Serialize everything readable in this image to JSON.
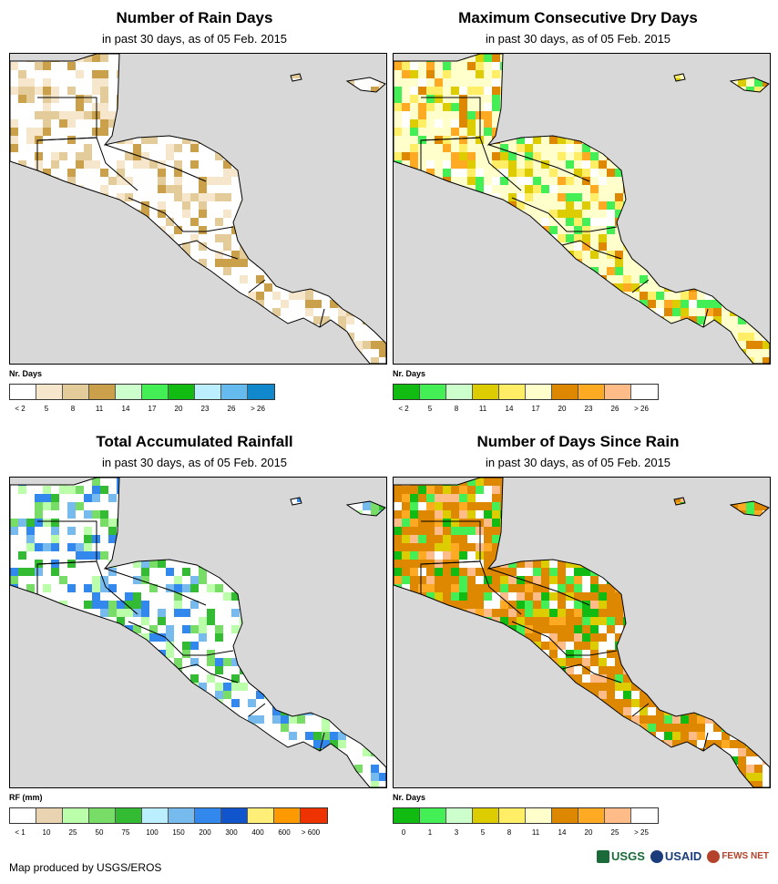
{
  "panels": [
    {
      "title": "Number of Rain Days",
      "subtitle": "in past 30 days, as of 05 Feb. 2015",
      "legend_title": "Nr. Days",
      "legend_colors": [
        "#ffffff",
        "#f5e6cc",
        "#e3cb9a",
        "#caa04a",
        "#ccffcc",
        "#44ee55",
        "#11bb11",
        "#bbeeff",
        "#66bbee",
        "#1188cc"
      ],
      "legend_ticks": [
        "< 2",
        "5",
        "8",
        "11",
        "14",
        "17",
        "20",
        "23",
        "26",
        "> 26"
      ],
      "land_color": "#ffffff",
      "fill_palette": [
        "#f5e6cc",
        "#e3cb9a",
        "#caa04a",
        "#ffffff"
      ]
    },
    {
      "title": "Maximum Consecutive Dry Days",
      "subtitle": "in past 30 days, as of 05 Feb. 2015",
      "legend_title": "Nr. Days",
      "legend_colors": [
        "#11bb11",
        "#44ee55",
        "#ccffcc",
        "#ddcc00",
        "#ffee66",
        "#ffffcc",
        "#dd8800",
        "#ffaa22",
        "#ffbb88",
        "#ffffff"
      ],
      "legend_ticks": [
        "< 2",
        "5",
        "8",
        "11",
        "14",
        "17",
        "20",
        "23",
        "26",
        "> 26"
      ],
      "land_color": "#ffffcc",
      "fill_palette": [
        "#ffee66",
        "#ddcc00",
        "#dd8800",
        "#ffaa22",
        "#ffffff",
        "#44ee55"
      ]
    },
    {
      "title": "Total Accumulated Rainfall",
      "subtitle": "in past 30 days, as of 05 Feb. 2015",
      "legend_title": "RF (mm)",
      "legend_colors": [
        "#ffffff",
        "#ead3b0",
        "#bbffaa",
        "#77dd66",
        "#33bb33",
        "#bbeeff",
        "#77bbee",
        "#3388ee",
        "#1155cc",
        "#ffee77",
        "#ff9900",
        "#ee3300"
      ],
      "legend_ticks": [
        "< 1",
        "10",
        "25",
        "50",
        "75",
        "100",
        "150",
        "200",
        "300",
        "400",
        "600",
        "> 600"
      ],
      "land_color": "#ffffff",
      "fill_palette": [
        "#bbffaa",
        "#77dd66",
        "#33bb33",
        "#77bbee",
        "#3388ee",
        "#ffffff"
      ]
    },
    {
      "title": "Number of Days Since Rain",
      "subtitle": "in past 30 days, as of 05 Feb. 2015",
      "legend_title": "Nr. Days",
      "legend_colors": [
        "#11bb11",
        "#44ee55",
        "#ccffcc",
        "#ddcc00",
        "#ffee66",
        "#ffffcc",
        "#dd8800",
        "#ffaa22",
        "#ffbb88",
        "#ffffff"
      ],
      "legend_ticks": [
        "0",
        "1",
        "3",
        "5",
        "8",
        "11",
        "14",
        "20",
        "25",
        "> 25"
      ],
      "land_color": "#dd8800",
      "fill_palette": [
        "#ffaa22",
        "#ddcc00",
        "#11bb11",
        "#ffffff",
        "#ffbb88",
        "#44ee55"
      ]
    }
  ],
  "footer": "Map produced by USGS/EROS",
  "logos": [
    "USGS",
    "USAID",
    "FEWS NET"
  ],
  "ocean_color": "#d8d8d8"
}
